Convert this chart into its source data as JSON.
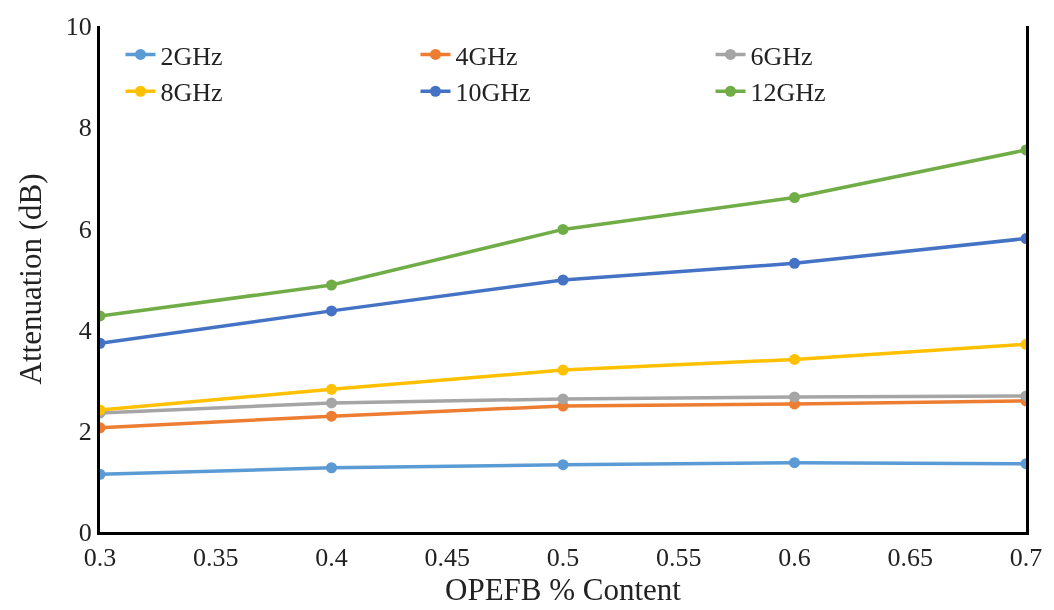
{
  "chart_data": {
    "type": "line",
    "xlabel": "OPEFB % Content",
    "ylabel": "Attenuation (dB)",
    "x": [
      0.3,
      0.4,
      0.5,
      0.6,
      0.7
    ],
    "xlim": [
      0.3,
      0.7
    ],
    "xticks": [
      0.3,
      0.35,
      0.4,
      0.45,
      0.5,
      0.55,
      0.6,
      0.65,
      0.7
    ],
    "ylim": [
      0,
      10
    ],
    "yticks": [
      0,
      2,
      4,
      6,
      8,
      10
    ],
    "legend": "top",
    "marker": "circle",
    "line_style": "solid",
    "series": [
      {
        "name": "2GHz",
        "color": "#5b9bd5",
        "values": [
          1.14,
          1.27,
          1.33,
          1.37,
          1.35
        ]
      },
      {
        "name": "4GHz",
        "color": "#ed7d31",
        "values": [
          2.06,
          2.29,
          2.49,
          2.53,
          2.59
        ]
      },
      {
        "name": "6GHz",
        "color": "#a5a5a5",
        "values": [
          2.35,
          2.55,
          2.63,
          2.67,
          2.69
        ]
      },
      {
        "name": "8GHz",
        "color": "#ffc000",
        "values": [
          2.41,
          2.82,
          3.2,
          3.41,
          3.71
        ]
      },
      {
        "name": "10GHz",
        "color": "#4472c4",
        "values": [
          3.73,
          4.37,
          4.98,
          5.31,
          5.8
        ]
      },
      {
        "name": "12GHz",
        "color": "#70ad47",
        "values": [
          4.27,
          4.88,
          5.98,
          6.61,
          7.55
        ]
      }
    ]
  }
}
